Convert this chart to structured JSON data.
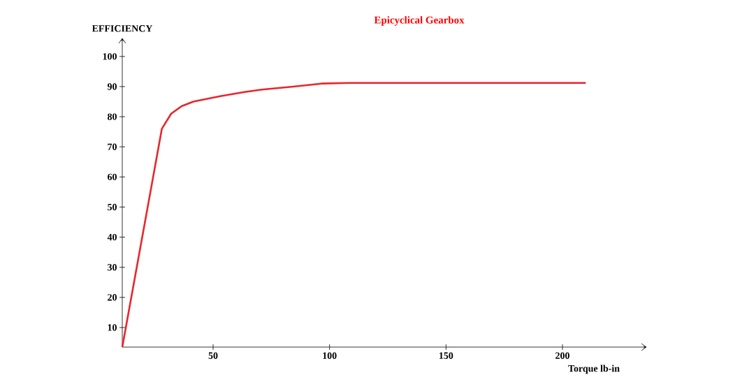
{
  "chart_data": {
    "type": "line",
    "title": "Epicyclical Gearbox",
    "xlabel": "Torque lb-in",
    "ylabel": "EFFICIENCY",
    "x": [
      11,
      28,
      32,
      36.5,
      41.5,
      53,
      63.5,
      71,
      84.5,
      96.5,
      108.5,
      210
    ],
    "series": [
      {
        "color": "#e8262b",
        "values": [
          3.5,
          76,
          81,
          83.5,
          85,
          86.8,
          88.2,
          89,
          90,
          91,
          91.2,
          91.2
        ]
      }
    ],
    "xlim": [
      11,
      236
    ],
    "ylim": [
      3.5,
      106
    ],
    "xticks": [
      50,
      100,
      150,
      200
    ],
    "yticks": [
      10,
      20,
      30,
      40,
      50,
      60,
      70,
      80,
      90,
      100
    ],
    "grid": false,
    "marker": "none",
    "line_style": "solid"
  }
}
